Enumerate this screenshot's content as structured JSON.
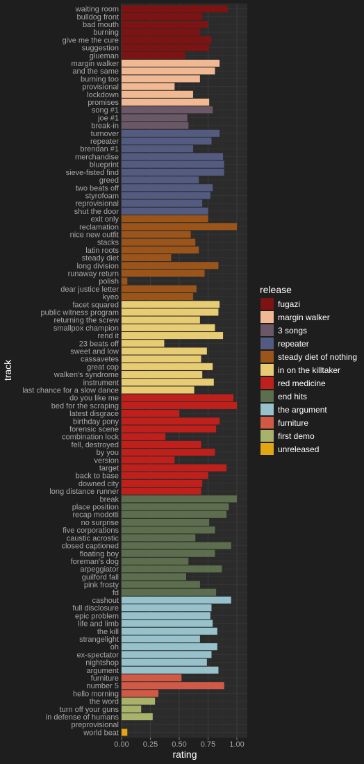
{
  "chart_data": {
    "type": "bar",
    "orientation": "horizontal",
    "xlabel": "rating",
    "ylabel": "track",
    "xlim": [
      0,
      1.05
    ],
    "xticks": [
      "0.00",
      "0.25",
      "0.50",
      "0.75",
      "1.00"
    ],
    "xtick_values": [
      0,
      0.25,
      0.5,
      0.75,
      1.0
    ],
    "grid": true,
    "legend_position": "right",
    "legend_title": "release",
    "releases": [
      {
        "name": "fugazi",
        "color": "#7e1313"
      },
      {
        "name": "margin walker",
        "color": "#f0b893"
      },
      {
        "name": "3 songs",
        "color": "#6a5867"
      },
      {
        "name": "repeater",
        "color": "#535c80"
      },
      {
        "name": "steady diet of nothing",
        "color": "#9b551b"
      },
      {
        "name": "in on the killtaker",
        "color": "#e7cc73"
      },
      {
        "name": "red medicine",
        "color": "#c0201b"
      },
      {
        "name": "end hits",
        "color": "#5c6e4d"
      },
      {
        "name": "the argument",
        "color": "#97c2cb"
      },
      {
        "name": "furniture",
        "color": "#d15a47"
      },
      {
        "name": "first demo",
        "color": "#a8b26b"
      },
      {
        "name": "unreleased",
        "color": "#e3a512"
      }
    ],
    "tracks": [
      {
        "track": "waiting room",
        "release": "fugazi",
        "rating": 0.92
      },
      {
        "track": "bulldog front",
        "release": "fugazi",
        "rating": 0.7
      },
      {
        "track": "bad mouth",
        "release": "fugazi",
        "rating": 0.75
      },
      {
        "track": "burning",
        "release": "fugazi",
        "rating": 0.68
      },
      {
        "track": "give me the cure",
        "release": "fugazi",
        "rating": 0.78
      },
      {
        "track": "suggestion",
        "release": "fugazi",
        "rating": 0.76
      },
      {
        "track": "glueman",
        "release": "fugazi",
        "rating": 0.55
      },
      {
        "track": "margin walker",
        "release": "margin walker",
        "rating": 0.85
      },
      {
        "track": "and the same",
        "release": "margin walker",
        "rating": 0.81
      },
      {
        "track": "burning too",
        "release": "margin walker",
        "rating": 0.68
      },
      {
        "track": "provisional",
        "release": "margin walker",
        "rating": 0.46
      },
      {
        "track": "lockdown",
        "release": "margin walker",
        "rating": 0.62
      },
      {
        "track": "promises",
        "release": "margin walker",
        "rating": 0.76
      },
      {
        "track": "song #1",
        "release": "3 songs",
        "rating": 0.79
      },
      {
        "track": "joe #1",
        "release": "3 songs",
        "rating": 0.57
      },
      {
        "track": "break-in",
        "release": "3 songs",
        "rating": 0.58
      },
      {
        "track": "turnover",
        "release": "repeater",
        "rating": 0.85
      },
      {
        "track": "repeater",
        "release": "repeater",
        "rating": 0.78
      },
      {
        "track": "brendan #1",
        "release": "repeater",
        "rating": 0.62
      },
      {
        "track": "merchandise",
        "release": "repeater",
        "rating": 0.88
      },
      {
        "track": "blueprint",
        "release": "repeater",
        "rating": 0.89
      },
      {
        "track": "sieve-fisted find",
        "release": "repeater",
        "rating": 0.89
      },
      {
        "track": "greed",
        "release": "repeater",
        "rating": 0.67
      },
      {
        "track": "two beats off",
        "release": "repeater",
        "rating": 0.79
      },
      {
        "track": "styrofoam",
        "release": "repeater",
        "rating": 0.77
      },
      {
        "track": "reprovisional",
        "release": "repeater",
        "rating": 0.7
      },
      {
        "track": "shut the door",
        "release": "repeater",
        "rating": 0.75
      },
      {
        "track": "exit only",
        "release": "steady diet of nothing",
        "rating": 0.75
      },
      {
        "track": "reclamation",
        "release": "steady diet of nothing",
        "rating": 1.0
      },
      {
        "track": "nice new outfit",
        "release": "steady diet of nothing",
        "rating": 0.6
      },
      {
        "track": "stacks",
        "release": "steady diet of nothing",
        "rating": 0.64
      },
      {
        "track": "latin roots",
        "release": "steady diet of nothing",
        "rating": 0.67
      },
      {
        "track": "steady diet",
        "release": "steady diet of nothing",
        "rating": 0.43
      },
      {
        "track": "long division",
        "release": "steady diet of nothing",
        "rating": 0.84
      },
      {
        "track": "runaway return",
        "release": "steady diet of nothing",
        "rating": 0.72
      },
      {
        "track": "polish",
        "release": "steady diet of nothing",
        "rating": 0.05
      },
      {
        "track": "dear justice letter",
        "release": "steady diet of nothing",
        "rating": 0.65
      },
      {
        "track": "kyeo",
        "release": "steady diet of nothing",
        "rating": 0.62
      },
      {
        "track": "facet squared",
        "release": "in on the killtaker",
        "rating": 0.85
      },
      {
        "track": "public witness program",
        "release": "in on the killtaker",
        "rating": 0.84
      },
      {
        "track": "returning the screw",
        "release": "in on the killtaker",
        "rating": 0.68
      },
      {
        "track": "smallpox champion",
        "release": "in on the killtaker",
        "rating": 0.81
      },
      {
        "track": "rend it",
        "release": "in on the killtaker",
        "rating": 0.88
      },
      {
        "track": "23 beats off",
        "release": "in on the killtaker",
        "rating": 0.37
      },
      {
        "track": "sweet and low",
        "release": "in on the killtaker",
        "rating": 0.74
      },
      {
        "track": "cassavetes",
        "release": "in on the killtaker",
        "rating": 0.69
      },
      {
        "track": "great cop",
        "release": "in on the killtaker",
        "rating": 0.79
      },
      {
        "track": "walken's syndrome",
        "release": "in on the killtaker",
        "rating": 0.7
      },
      {
        "track": "instrument",
        "release": "in on the killtaker",
        "rating": 0.8
      },
      {
        "track": "last chance for a slow dance",
        "release": "in on the killtaker",
        "rating": 0.63
      },
      {
        "track": "do you like me",
        "release": "red medicine",
        "rating": 0.97
      },
      {
        "track": "bed for the scraping",
        "release": "red medicine",
        "rating": 1.0
      },
      {
        "track": "latest disgrace",
        "release": "red medicine",
        "rating": 0.5
      },
      {
        "track": "birthday pony",
        "release": "red medicine",
        "rating": 0.85
      },
      {
        "track": "forensic scene",
        "release": "red medicine",
        "rating": 0.82
      },
      {
        "track": "combination lock",
        "release": "red medicine",
        "rating": 0.38
      },
      {
        "track": "fell, destroyed",
        "release": "red medicine",
        "rating": 0.69
      },
      {
        "track": "by you",
        "release": "red medicine",
        "rating": 0.81
      },
      {
        "track": "version",
        "release": "red medicine",
        "rating": 0.46
      },
      {
        "track": "target",
        "release": "red medicine",
        "rating": 0.91
      },
      {
        "track": "back to base",
        "release": "red medicine",
        "rating": 0.75
      },
      {
        "track": "downed city",
        "release": "red medicine",
        "rating": 0.7
      },
      {
        "track": "long distance runner",
        "release": "red medicine",
        "rating": 0.69
      },
      {
        "track": "break",
        "release": "end hits",
        "rating": 1.0
      },
      {
        "track": "place position",
        "release": "end hits",
        "rating": 0.93
      },
      {
        "track": "recap modotti",
        "release": "end hits",
        "rating": 0.91
      },
      {
        "track": "no surprise",
        "release": "end hits",
        "rating": 0.76
      },
      {
        "track": "five corporations",
        "release": "end hits",
        "rating": 0.81
      },
      {
        "track": "caustic acrostic",
        "release": "end hits",
        "rating": 0.64
      },
      {
        "track": "closed captioned",
        "release": "end hits",
        "rating": 0.95
      },
      {
        "track": "floating boy",
        "release": "end hits",
        "rating": 0.81
      },
      {
        "track": "foreman's dog",
        "release": "end hits",
        "rating": 0.58
      },
      {
        "track": "arpeggiator",
        "release": "end hits",
        "rating": 0.87
      },
      {
        "track": "guilford fall",
        "release": "end hits",
        "rating": 0.56
      },
      {
        "track": "pink frosty",
        "release": "end hits",
        "rating": 0.68
      },
      {
        "track": "fd",
        "release": "end hits",
        "rating": 0.82
      },
      {
        "track": "cashout",
        "release": "the argument",
        "rating": 0.95
      },
      {
        "track": "full disclosure",
        "release": "the argument",
        "rating": 0.78
      },
      {
        "track": "epic problem",
        "release": "the argument",
        "rating": 0.77
      },
      {
        "track": "life and limb",
        "release": "the argument",
        "rating": 0.79
      },
      {
        "track": "the kill",
        "release": "the argument",
        "rating": 0.83
      },
      {
        "track": "strangelight",
        "release": "the argument",
        "rating": 0.68
      },
      {
        "track": "oh",
        "release": "the argument",
        "rating": 0.83
      },
      {
        "track": "ex-spectator",
        "release": "the argument",
        "rating": 0.78
      },
      {
        "track": "nightshop",
        "release": "the argument",
        "rating": 0.74
      },
      {
        "track": "argument",
        "release": "the argument",
        "rating": 0.84
      },
      {
        "track": "furniture",
        "release": "furniture",
        "rating": 0.52
      },
      {
        "track": "number 5",
        "release": "furniture",
        "rating": 0.89
      },
      {
        "track": "hello morning",
        "release": "furniture",
        "rating": 0.32
      },
      {
        "track": "the word",
        "release": "first demo",
        "rating": 0.29
      },
      {
        "track": "turn off your guns",
        "release": "first demo",
        "rating": 0.17
      },
      {
        "track": "in defense of humans",
        "release": "first demo",
        "rating": 0.27
      },
      {
        "track": "preprovisional",
        "release": "unreleased",
        "rating": 0.0
      },
      {
        "track": "world beat",
        "release": "unreleased",
        "rating": 0.05
      }
    ]
  }
}
